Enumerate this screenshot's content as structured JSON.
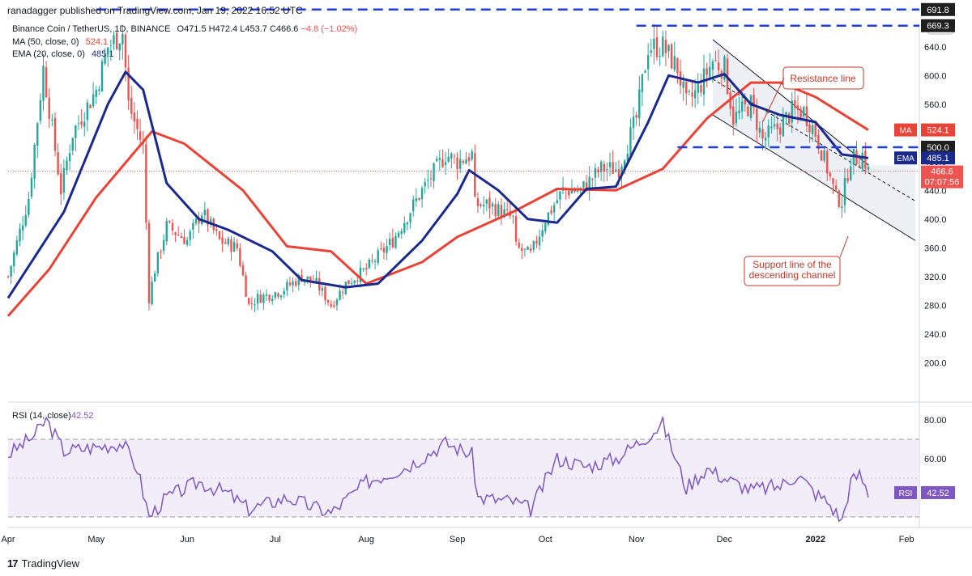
{
  "header": {
    "publisher": "ranadagger published on TradingView.com, Jan 19, 2022 16:52 UTC"
  },
  "legend": {
    "symbol": "Binance Coin / TetherUS, 1D, BINANCE",
    "open": "O471.5",
    "high": "H472.4",
    "low": "L453.7",
    "close": "C466.6",
    "change": "−4.8 (−1.02%)",
    "ma_label": "MA (50, close, 0)",
    "ma_value": "524.1",
    "ema_label": "EMA (20, close, 0)",
    "ema_value": "485.1"
  },
  "footer": {
    "brand": "TradingView",
    "logo_glyph": "17"
  },
  "colors": {
    "up": "#26a69a",
    "down": "#ef5350",
    "ma": "#e84336",
    "ema": "#1a2a8c",
    "level": "#1f3fd8",
    "rsi": "#7e57c2",
    "annotation": "#c0392b"
  },
  "chart_data": [
    {
      "type": "candlestick",
      "currency": "USDT",
      "x_range": [
        "2021-04-01",
        "2022-02-04"
      ],
      "ylim": [
        180,
        700
      ],
      "y_ticks": [
        "640.0",
        "600.0",
        "560.0",
        "520.0",
        "480.0",
        "440.0",
        "400.0",
        "360.0",
        "320.0",
        "280.0",
        "240.0",
        "200.0"
      ],
      "x_ticks": [
        {
          "label": "Apr",
          "date": "2021-04-01"
        },
        {
          "label": "May",
          "date": "2021-05-01"
        },
        {
          "label": "Jun",
          "date": "2021-06-01"
        },
        {
          "label": "Jul",
          "date": "2021-07-01"
        },
        {
          "label": "Aug",
          "date": "2021-08-01"
        },
        {
          "label": "Sep",
          "date": "2021-09-01"
        },
        {
          "label": "Oct",
          "date": "2021-10-01"
        },
        {
          "label": "Nov",
          "date": "2021-11-01"
        },
        {
          "label": "Dec",
          "date": "2021-12-01"
        },
        {
          "label": "2022",
          "date": "2022-01-01"
        },
        {
          "label": "Feb",
          "date": "2022-02-01"
        }
      ],
      "price_keypoints": [
        [
          "2021-04-01",
          320
        ],
        [
          "2021-04-08",
          430
        ],
        [
          "2021-04-13",
          610
        ],
        [
          "2021-04-19",
          440
        ],
        [
          "2021-04-23",
          520
        ],
        [
          "2021-05-01",
          580
        ],
        [
          "2021-05-05",
          640
        ],
        [
          "2021-05-10",
          660
        ],
        [
          "2021-05-12",
          560
        ],
        [
          "2021-05-17",
          500
        ],
        [
          "2021-05-19",
          290
        ],
        [
          "2021-05-21",
          330
        ],
        [
          "2021-05-25",
          390
        ],
        [
          "2021-06-01",
          370
        ],
        [
          "2021-06-06",
          410
        ],
        [
          "2021-06-12",
          370
        ],
        [
          "2021-06-18",
          360
        ],
        [
          "2021-06-22",
          280
        ],
        [
          "2021-06-25",
          290
        ],
        [
          "2021-07-03",
          300
        ],
        [
          "2021-07-10",
          320
        ],
        [
          "2021-07-15",
          310
        ],
        [
          "2021-07-20",
          280
        ],
        [
          "2021-07-25",
          310
        ],
        [
          "2021-08-01",
          330
        ],
        [
          "2021-08-10",
          370
        ],
        [
          "2021-08-20",
          440
        ],
        [
          "2021-08-28",
          490
        ],
        [
          "2021-09-01",
          480
        ],
        [
          "2021-09-06",
          490
        ],
        [
          "2021-09-07",
          420
        ],
        [
          "2021-09-12",
          420
        ],
        [
          "2021-09-20",
          400
        ],
        [
          "2021-09-21",
          360
        ],
        [
          "2021-09-26",
          350
        ],
        [
          "2021-10-01",
          400
        ],
        [
          "2021-10-07",
          440
        ],
        [
          "2021-10-13",
          440
        ],
        [
          "2021-10-20",
          470
        ],
        [
          "2021-10-26",
          470
        ],
        [
          "2021-11-01",
          540
        ],
        [
          "2021-11-05",
          640
        ],
        [
          "2021-11-10",
          640
        ],
        [
          "2021-11-15",
          610
        ],
        [
          "2021-11-18",
          560
        ],
        [
          "2021-11-22",
          580
        ],
        [
          "2021-11-27",
          620
        ],
        [
          "2021-12-01",
          610
        ],
        [
          "2021-12-04",
          540
        ],
        [
          "2021-12-10",
          560
        ],
        [
          "2021-12-14",
          510
        ],
        [
          "2021-12-20",
          530
        ],
        [
          "2021-12-24",
          550
        ],
        [
          "2021-12-28",
          550
        ],
        [
          "2022-01-01",
          520
        ],
        [
          "2022-01-05",
          470
        ],
        [
          "2022-01-08",
          430
        ],
        [
          "2022-01-10",
          425
        ],
        [
          "2022-01-13",
          485
        ],
        [
          "2022-01-16",
          485
        ],
        [
          "2022-01-17",
          490
        ],
        [
          "2022-01-19",
          466.6
        ]
      ],
      "ma50": {
        "name": "MA",
        "last": 524.1,
        "points": [
          [
            "2021-04-01",
            265
          ],
          [
            "2021-04-15",
            330
          ],
          [
            "2021-05-01",
            430
          ],
          [
            "2021-05-20",
            522
          ],
          [
            "2021-05-31",
            505
          ],
          [
            "2021-06-20",
            440
          ],
          [
            "2021-07-05",
            362
          ],
          [
            "2021-07-20",
            355
          ],
          [
            "2021-08-01",
            310
          ],
          [
            "2021-08-20",
            340
          ],
          [
            "2021-09-01",
            375
          ],
          [
            "2021-09-20",
            410
          ],
          [
            "2021-10-05",
            442
          ],
          [
            "2021-10-25",
            440
          ],
          [
            "2021-11-10",
            470
          ],
          [
            "2021-11-25",
            540
          ],
          [
            "2021-12-10",
            590
          ],
          [
            "2021-12-20",
            590
          ],
          [
            "2022-01-01",
            570
          ],
          [
            "2022-01-19",
            524
          ]
        ]
      },
      "ema20": {
        "name": "EMA",
        "last": 485.1,
        "points": [
          [
            "2021-04-01",
            290
          ],
          [
            "2021-04-20",
            410
          ],
          [
            "2021-05-05",
            560
          ],
          [
            "2021-05-11",
            605
          ],
          [
            "2021-05-17",
            580
          ],
          [
            "2021-05-25",
            450
          ],
          [
            "2021-06-05",
            400
          ],
          [
            "2021-06-15",
            385
          ],
          [
            "2021-06-30",
            355
          ],
          [
            "2021-07-10",
            315
          ],
          [
            "2021-07-25",
            305
          ],
          [
            "2021-08-05",
            310
          ],
          [
            "2021-08-20",
            370
          ],
          [
            "2021-09-01",
            435
          ],
          [
            "2021-09-05",
            468
          ],
          [
            "2021-09-15",
            440
          ],
          [
            "2021-09-25",
            400
          ],
          [
            "2021-10-05",
            395
          ],
          [
            "2021-10-15",
            442
          ],
          [
            "2021-10-25",
            445
          ],
          [
            "2021-11-05",
            535
          ],
          [
            "2021-11-12",
            600
          ],
          [
            "2021-11-22",
            590
          ],
          [
            "2021-12-01",
            602
          ],
          [
            "2021-12-10",
            560
          ],
          [
            "2021-12-20",
            545
          ],
          [
            "2022-01-01",
            535
          ],
          [
            "2022-01-10",
            490
          ],
          [
            "2022-01-19",
            485
          ]
        ]
      },
      "levels": [
        {
          "label": "691.8",
          "price": 691.8,
          "from": "2021-05-01"
        },
        {
          "label": "669.3",
          "price": 669.3,
          "from": "2021-11-01"
        },
        {
          "label": "500.0",
          "price": 500.0,
          "from": "2021-11-15"
        }
      ],
      "last_price": {
        "label": "466.6",
        "timer": "07:07:56",
        "price": 466.6
      },
      "badges": [
        {
          "name": "MA",
          "value": "524.1",
          "price": 524.1
        },
        {
          "name": "EMA",
          "value": "485.1",
          "price": 485.1
        }
      ],
      "channel": {
        "resistance": [
          [
            "2021-11-27",
            650
          ],
          [
            "2022-01-19",
            475
          ]
        ],
        "support": [
          [
            "2021-11-27",
            545
          ],
          [
            "2022-02-04",
            370
          ]
        ]
      },
      "annotations": [
        {
          "text": "Resistance line"
        },
        {
          "text_lines": [
            "Support line of the",
            "descending channel"
          ]
        }
      ]
    },
    {
      "type": "line",
      "title": "RSI (14, close)",
      "value": "42.52",
      "badge": "RSI",
      "y_ticks": [
        "80.00",
        "60.00"
      ],
      "bands": [
        30,
        70
      ],
      "keypoints": [
        [
          "2021-04-01",
          62
        ],
        [
          "2021-04-10",
          72
        ],
        [
          "2021-04-14",
          80
        ],
        [
          "2021-04-20",
          64
        ],
        [
          "2021-05-01",
          66
        ],
        [
          "2021-05-10",
          68
        ],
        [
          "2021-05-15",
          55
        ],
        [
          "2021-05-19",
          30
        ],
        [
          "2021-05-25",
          40
        ],
        [
          "2021-06-05",
          48
        ],
        [
          "2021-06-15",
          42
        ],
        [
          "2021-06-22",
          34
        ],
        [
          "2021-07-05",
          40
        ],
        [
          "2021-07-20",
          32
        ],
        [
          "2021-08-01",
          48
        ],
        [
          "2021-08-15",
          56
        ],
        [
          "2021-08-28",
          68
        ],
        [
          "2021-09-06",
          62
        ],
        [
          "2021-09-08",
          40
        ],
        [
          "2021-09-20",
          38
        ],
        [
          "2021-09-26",
          34
        ],
        [
          "2021-10-05",
          60
        ],
        [
          "2021-10-15",
          56
        ],
        [
          "2021-10-25",
          60
        ],
        [
          "2021-11-05",
          72
        ],
        [
          "2021-11-10",
          78
        ],
        [
          "2021-11-18",
          45
        ],
        [
          "2021-11-25",
          55
        ],
        [
          "2021-12-01",
          50
        ],
        [
          "2021-12-10",
          44
        ],
        [
          "2021-12-20",
          46
        ],
        [
          "2021-12-26",
          52
        ],
        [
          "2022-01-01",
          42
        ],
        [
          "2022-01-05",
          38
        ],
        [
          "2022-01-10",
          28
        ],
        [
          "2022-01-13",
          48
        ],
        [
          "2022-01-16",
          52
        ],
        [
          "2022-01-19",
          42.52
        ]
      ]
    }
  ]
}
